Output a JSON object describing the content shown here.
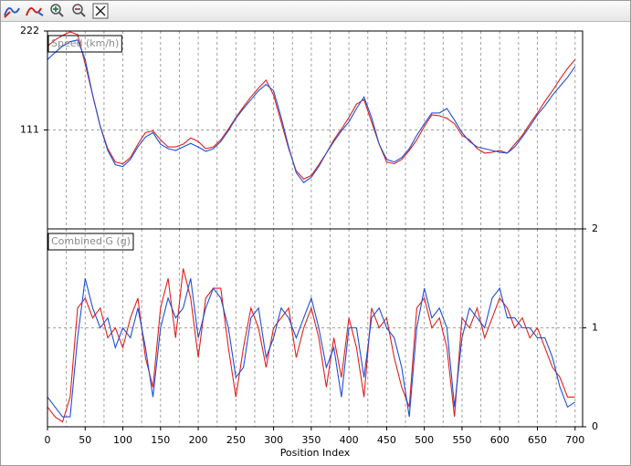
{
  "chart_data": [
    {
      "type": "line",
      "title": "Speed (km/h)",
      "x": [
        0,
        10,
        20,
        30,
        40,
        50,
        60,
        70,
        80,
        90,
        100,
        110,
        120,
        130,
        140,
        150,
        160,
        170,
        180,
        190,
        200,
        210,
        220,
        230,
        240,
        250,
        260,
        270,
        280,
        290,
        300,
        310,
        320,
        330,
        340,
        350,
        360,
        370,
        380,
        390,
        400,
        410,
        420,
        430,
        440,
        450,
        460,
        470,
        480,
        490,
        500,
        510,
        520,
        530,
        540,
        550,
        560,
        570,
        580,
        590,
        600,
        610,
        620,
        630,
        640,
        650,
        660,
        670,
        680,
        690,
        700
      ],
      "series": [
        {
          "color": "#e0201c",
          "values": [
            205,
            212,
            217,
            221,
            218,
            185,
            150,
            115,
            90,
            75,
            73,
            80,
            95,
            108,
            110,
            100,
            92,
            92,
            95,
            102,
            98,
            90,
            92,
            100,
            112,
            125,
            137,
            148,
            158,
            167,
            150,
            120,
            90,
            65,
            56,
            60,
            72,
            85,
            100,
            112,
            125,
            140,
            145,
            120,
            95,
            75,
            73,
            78,
            88,
            100,
            115,
            128,
            127,
            124,
            118,
            105,
            100,
            90,
            85,
            86,
            88,
            85,
            95,
            105,
            118,
            130,
            143,
            155,
            168,
            180,
            190
          ]
        },
        {
          "color": "#1f4fd8",
          "values": [
            190,
            198,
            205,
            210,
            212,
            190,
            150,
            115,
            88,
            72,
            70,
            78,
            92,
            103,
            108,
            95,
            90,
            88,
            92,
            96,
            92,
            87,
            90,
            98,
            110,
            124,
            135,
            145,
            155,
            162,
            155,
            125,
            92,
            63,
            52,
            58,
            70,
            85,
            98,
            110,
            120,
            135,
            148,
            125,
            95,
            78,
            75,
            80,
            90,
            105,
            118,
            130,
            130,
            135,
            122,
            108,
            98,
            92,
            90,
            88,
            86,
            85,
            92,
            103,
            115,
            128,
            138,
            150,
            160,
            170,
            182
          ]
        }
      ],
      "xlim": [
        0,
        710
      ],
      "ylim": [
        0,
        222
      ],
      "yticks": [
        111,
        222
      ],
      "grid": true,
      "yaxis_side": "left"
    },
    {
      "type": "line",
      "title": "Combined G (g)",
      "xlabel": "Position Index",
      "x": [
        0,
        10,
        20,
        30,
        40,
        50,
        60,
        70,
        80,
        90,
        100,
        110,
        120,
        130,
        140,
        150,
        160,
        170,
        180,
        190,
        200,
        210,
        220,
        230,
        240,
        250,
        260,
        270,
        280,
        290,
        300,
        310,
        320,
        330,
        340,
        350,
        360,
        370,
        380,
        390,
        400,
        410,
        420,
        430,
        440,
        450,
        460,
        470,
        480,
        490,
        500,
        510,
        520,
        530,
        540,
        550,
        560,
        570,
        580,
        590,
        600,
        610,
        620,
        630,
        640,
        650,
        660,
        670,
        680,
        690,
        700
      ],
      "series": [
        {
          "color": "#e0201c",
          "values": [
            0.2,
            0.1,
            0.05,
            0.3,
            1.2,
            1.3,
            1.1,
            1.2,
            0.9,
            1.0,
            0.8,
            1.1,
            1.3,
            0.7,
            0.4,
            1.2,
            1.5,
            0.9,
            1.6,
            1.3,
            0.7,
            1.3,
            1.4,
            1.4,
            0.8,
            0.3,
            0.8,
            1.2,
            1.0,
            0.6,
            1.0,
            1.1,
            1.2,
            0.7,
            1.0,
            1.2,
            0.9,
            0.4,
            0.9,
            0.5,
            1.1,
            0.8,
            0.3,
            1.2,
            1.0,
            1.1,
            0.7,
            0.4,
            0.2,
            1.2,
            1.3,
            1.0,
            1.1,
            0.8,
            0.1,
            1.1,
            1.0,
            1.2,
            0.9,
            1.1,
            1.3,
            1.2,
            1.0,
            1.1,
            0.9,
            1.0,
            0.8,
            0.6,
            0.5,
            0.3,
            0.3
          ]
        },
        {
          "color": "#1f4fd8",
          "values": [
            0.3,
            0.2,
            0.1,
            0.1,
            0.9,
            1.5,
            1.2,
            1.0,
            1.1,
            0.8,
            1.0,
            0.9,
            1.2,
            0.8,
            0.3,
            1.0,
            1.3,
            1.1,
            1.2,
            1.5,
            0.9,
            1.2,
            1.4,
            1.3,
            1.0,
            0.5,
            0.6,
            1.1,
            1.2,
            0.7,
            0.9,
            1.2,
            1.1,
            0.9,
            1.1,
            1.3,
            1.0,
            0.6,
            0.8,
            0.3,
            1.0,
            1.0,
            0.5,
            1.1,
            1.2,
            1.0,
            0.9,
            0.6,
            0.1,
            1.0,
            1.4,
            1.1,
            1.2,
            1.0,
            0.2,
            0.9,
            1.2,
            1.1,
            1.0,
            1.3,
            1.4,
            1.1,
            1.1,
            1.0,
            1.0,
            0.9,
            0.9,
            0.7,
            0.4,
            0.2,
            0.25
          ]
        }
      ],
      "xlim": [
        0,
        710
      ],
      "xticks": [
        0,
        50,
        100,
        150,
        200,
        250,
        300,
        350,
        400,
        450,
        500,
        550,
        600,
        650,
        700
      ],
      "xminorticks": [
        25,
        75,
        125,
        175,
        225,
        275,
        325,
        375,
        425,
        475,
        525,
        575,
        625,
        675
      ],
      "ylim": [
        0,
        2
      ],
      "yticks": [
        0,
        1,
        2
      ],
      "grid": true,
      "yaxis_side": "right"
    }
  ]
}
